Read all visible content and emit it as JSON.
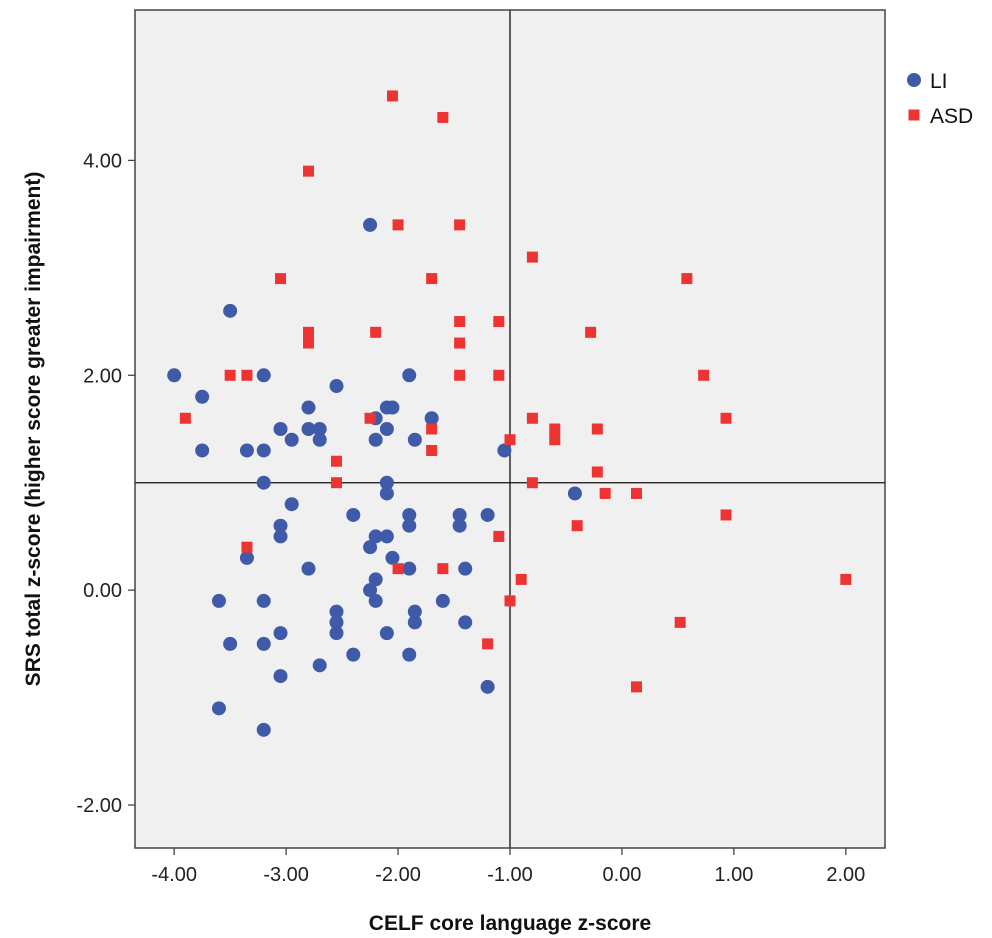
{
  "chart_data": {
    "type": "scatter",
    "title": "",
    "xlabel": "CELF core language z-score",
    "ylabel": "SRS total z-score (higher score greater impairment)",
    "xlim": [
      -4.35,
      2.35
    ],
    "ylim": [
      -2.4,
      5.4
    ],
    "xticks": [
      -4,
      -3,
      -2,
      -1,
      0,
      1,
      2
    ],
    "yticks": [
      -2,
      0,
      2,
      4
    ],
    "xtick_labels": [
      "-4.00",
      "-3.00",
      "-2.00",
      "-1.00",
      "0.00",
      "1.00",
      "2.00"
    ],
    "ytick_labels": [
      "-2.00",
      "0.00",
      "2.00",
      "4.00"
    ],
    "reference_lines": {
      "x": -1,
      "y": 1
    },
    "grid": false,
    "legend_position": "top-right, outside plot",
    "colors": {
      "plot_background": "#f0f0f0",
      "LI": "#3f5aa8",
      "ASD": "#ee3333"
    },
    "series": [
      {
        "name": "LI",
        "marker": "circle",
        "points": [
          [
            -4.0,
            2.0
          ],
          [
            -3.75,
            1.8
          ],
          [
            -3.75,
            1.3
          ],
          [
            -3.5,
            2.6
          ],
          [
            -3.6,
            -0.1
          ],
          [
            -3.6,
            -1.1
          ],
          [
            -3.5,
            -0.5
          ],
          [
            -3.35,
            1.3
          ],
          [
            -3.35,
            0.3
          ],
          [
            -3.2,
            2.0
          ],
          [
            -3.2,
            1.3
          ],
          [
            -3.2,
            1.0
          ],
          [
            -3.2,
            -0.1
          ],
          [
            -3.2,
            -0.5
          ],
          [
            -3.2,
            -1.3
          ],
          [
            -3.05,
            1.5
          ],
          [
            -3.05,
            0.6
          ],
          [
            -3.05,
            0.5
          ],
          [
            -3.05,
            -0.4
          ],
          [
            -3.05,
            -0.8
          ],
          [
            -2.95,
            1.4
          ],
          [
            -2.95,
            0.8
          ],
          [
            -2.8,
            1.7
          ],
          [
            -2.8,
            1.5
          ],
          [
            -2.8,
            0.2
          ],
          [
            -2.7,
            1.5
          ],
          [
            -2.7,
            1.4
          ],
          [
            -2.7,
            -0.7
          ],
          [
            -2.55,
            1.9
          ],
          [
            -2.55,
            -0.2
          ],
          [
            -2.55,
            -0.3
          ],
          [
            -2.55,
            -0.4
          ],
          [
            -2.4,
            0.7
          ],
          [
            -2.4,
            -0.6
          ],
          [
            -2.25,
            3.4
          ],
          [
            -2.25,
            0.4
          ],
          [
            -2.25,
            0.0
          ],
          [
            -2.2,
            1.6
          ],
          [
            -2.2,
            1.4
          ],
          [
            -2.2,
            0.5
          ],
          [
            -2.2,
            0.1
          ],
          [
            -2.2,
            -0.1
          ],
          [
            -2.1,
            1.7
          ],
          [
            -2.1,
            1.5
          ],
          [
            -2.1,
            1.0
          ],
          [
            -2.1,
            0.9
          ],
          [
            -2.1,
            0.5
          ],
          [
            -2.1,
            -0.4
          ],
          [
            -2.05,
            1.7
          ],
          [
            -2.05,
            0.3
          ],
          [
            -1.9,
            2.0
          ],
          [
            -1.9,
            0.7
          ],
          [
            -1.9,
            0.6
          ],
          [
            -1.9,
            0.2
          ],
          [
            -1.9,
            -0.6
          ],
          [
            -1.85,
            1.4
          ],
          [
            -1.85,
            -0.2
          ],
          [
            -1.85,
            -0.3
          ],
          [
            -1.7,
            1.6
          ],
          [
            -1.6,
            -0.1
          ],
          [
            -1.45,
            0.7
          ],
          [
            -1.45,
            0.6
          ],
          [
            -1.4,
            0.2
          ],
          [
            -1.4,
            -0.3
          ],
          [
            -1.2,
            0.7
          ],
          [
            -1.2,
            -0.9
          ],
          [
            -1.05,
            1.3
          ],
          [
            -0.42,
            0.9
          ]
        ]
      },
      {
        "name": "ASD",
        "marker": "square",
        "points": [
          [
            -3.9,
            1.6
          ],
          [
            -3.5,
            2.0
          ],
          [
            -3.35,
            2.0
          ],
          [
            -3.35,
            0.4
          ],
          [
            -3.05,
            2.9
          ],
          [
            -2.8,
            3.9
          ],
          [
            -2.8,
            2.4
          ],
          [
            -2.8,
            2.3
          ],
          [
            -2.55,
            1.2
          ],
          [
            -2.55,
            1.0
          ],
          [
            -2.25,
            1.6
          ],
          [
            -2.2,
            2.4
          ],
          [
            -2.05,
            4.6
          ],
          [
            -2.0,
            3.4
          ],
          [
            -2.0,
            0.2
          ],
          [
            -1.7,
            2.9
          ],
          [
            -1.7,
            1.5
          ],
          [
            -1.7,
            1.3
          ],
          [
            -1.6,
            4.4
          ],
          [
            -1.6,
            0.2
          ],
          [
            -1.45,
            3.4
          ],
          [
            -1.45,
            2.5
          ],
          [
            -1.45,
            2.3
          ],
          [
            -1.45,
            2.0
          ],
          [
            -1.2,
            -0.5
          ],
          [
            -1.1,
            2.5
          ],
          [
            -1.1,
            2.0
          ],
          [
            -1.1,
            0.5
          ],
          [
            -1.0,
            1.4
          ],
          [
            -1.0,
            -0.1
          ],
          [
            -0.9,
            0.1
          ],
          [
            -0.8,
            3.1
          ],
          [
            -0.8,
            1.6
          ],
          [
            -0.8,
            1.0
          ],
          [
            -0.6,
            1.5
          ],
          [
            -0.6,
            1.4
          ],
          [
            -0.4,
            0.6
          ],
          [
            -0.28,
            2.4
          ],
          [
            -0.22,
            1.5
          ],
          [
            -0.22,
            1.1
          ],
          [
            -0.15,
            0.9
          ],
          [
            0.13,
            0.9
          ],
          [
            0.13,
            -0.9
          ],
          [
            0.52,
            -0.3
          ],
          [
            0.58,
            2.9
          ],
          [
            0.73,
            2.0
          ],
          [
            0.93,
            1.6
          ],
          [
            0.93,
            0.7
          ],
          [
            2.0,
            0.1
          ]
        ]
      }
    ]
  }
}
